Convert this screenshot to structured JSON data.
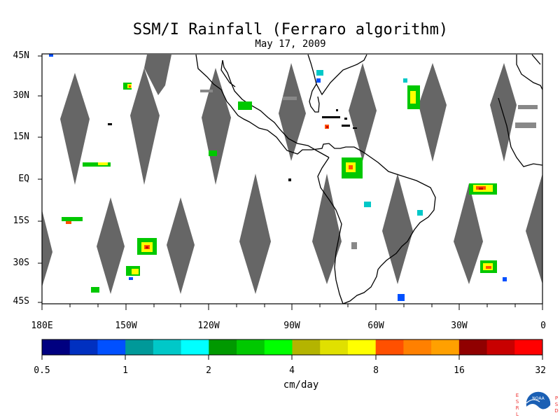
{
  "title": "SSM/I Rainfall (Ferraro algorithm)",
  "date": "May 17, 2009",
  "lat_labels": [
    "45N",
    "30N",
    "15N",
    "EQ",
    "15S",
    "30S",
    "45S"
  ],
  "lon_labels": [
    "180E",
    "150W",
    "120W",
    "90W",
    "60W",
    "30W",
    "0"
  ],
  "colorbar": {
    "units": "cm/day",
    "tick_labels": [
      "0.5",
      "1",
      "2",
      "4",
      "8",
      "16",
      "32"
    ],
    "colors": [
      "#000080",
      "#0030c0",
      "#0050ff",
      "#009999",
      "#00c8c8",
      "#00ffff",
      "#009900",
      "#00c800",
      "#00ff00",
      "#b4b400",
      "#e0e000",
      "#ffff00",
      "#ff5000",
      "#ff8000",
      "#ffa000",
      "#900000",
      "#c80000",
      "#ff0000"
    ]
  },
  "colors": {
    "swath_gap": "#666666",
    "land_outline": "#000000",
    "ocean": "#ffffff"
  },
  "logo": {
    "left_letters": "ESRL",
    "right_letters": "PSD",
    "text": "NOAA"
  }
}
